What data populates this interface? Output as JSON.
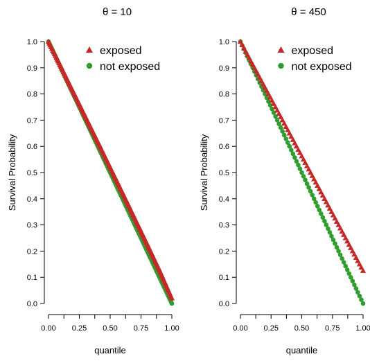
{
  "chart_data": [
    {
      "type": "scatter",
      "title": "θ = 10",
      "xlabel": "quantile",
      "ylabel": "Survival Probability",
      "xlim": [
        0,
        1
      ],
      "ylim": [
        0,
        1
      ],
      "x_ticks": [
        0,
        0.125,
        0.25,
        0.375,
        0.5,
        0.625,
        0.75,
        0.875,
        1
      ],
      "x_tick_labels": [
        "0.00",
        "",
        "0.25",
        "",
        "0.50",
        "",
        "0.75",
        "",
        "1.00"
      ],
      "y_ticks": [
        0,
        0.1,
        0.2,
        0.3,
        0.4,
        0.5,
        0.6,
        0.7,
        0.8,
        0.9,
        1
      ],
      "y_tick_labels": [
        "0.0",
        "0.1",
        "0.2",
        "0.3",
        "0.4",
        "0.5",
        "0.6",
        "0.7",
        "0.8",
        "0.9",
        "1.0"
      ],
      "grid": false,
      "legend_position": "top-right",
      "series": [
        {
          "name": "exposed",
          "color": "#c62828",
          "marker": "triangle",
          "x": [
            0,
            0.1,
            0.2,
            0.3,
            0.4,
            0.5,
            0.6,
            0.7,
            0.8,
            0.9,
            1
          ],
          "values": [
            1.0,
            0.905,
            0.809,
            0.713,
            0.617,
            0.52,
            0.423,
            0.325,
            0.227,
            0.127,
            0.02
          ]
        },
        {
          "name": "not exposed",
          "color": "#2e9e2e",
          "marker": "circle",
          "x": [
            0,
            0.1,
            0.2,
            0.3,
            0.4,
            0.5,
            0.6,
            0.7,
            0.8,
            0.9,
            1
          ],
          "values": [
            1.0,
            0.9,
            0.8,
            0.7,
            0.6,
            0.5,
            0.4,
            0.3,
            0.2,
            0.1,
            0.0
          ]
        }
      ]
    },
    {
      "type": "scatter",
      "title": "θ = 450",
      "xlabel": "quantile",
      "ylabel": "Survival Probability",
      "xlim": [
        0,
        1
      ],
      "ylim": [
        0,
        1
      ],
      "x_ticks": [
        0,
        0.125,
        0.25,
        0.375,
        0.5,
        0.625,
        0.75,
        0.875,
        1
      ],
      "x_tick_labels": [
        "0.00",
        "",
        "0.25",
        "",
        "0.50",
        "",
        "0.75",
        "",
        "1.00"
      ],
      "y_ticks": [
        0,
        0.1,
        0.2,
        0.3,
        0.4,
        0.5,
        0.6,
        0.7,
        0.8,
        0.9,
        1
      ],
      "y_tick_labels": [
        "0.0",
        "0.1",
        "0.2",
        "0.3",
        "0.4",
        "0.5",
        "0.6",
        "0.7",
        "0.8",
        "0.9",
        "1.0"
      ],
      "grid": false,
      "legend_position": "top-right",
      "series": [
        {
          "name": "exposed",
          "color": "#c62828",
          "marker": "triangle",
          "x": [
            0,
            0.2,
            0.4,
            0.6,
            0.8,
            1
          ],
          "values": [
            1.0,
            0.825,
            0.65,
            0.475,
            0.3,
            0.125
          ]
        },
        {
          "name": "not exposed",
          "color": "#2e9e2e",
          "marker": "circle",
          "x": [
            0,
            0.2,
            0.4,
            0.6,
            0.8,
            1
          ],
          "values": [
            1.0,
            0.8,
            0.6,
            0.4,
            0.2,
            0.0
          ]
        }
      ]
    }
  ]
}
